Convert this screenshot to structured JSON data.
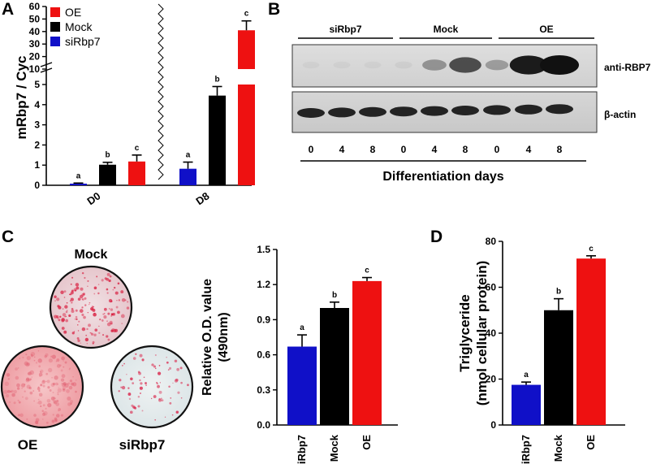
{
  "panels": [
    "A",
    "B",
    "C",
    "D"
  ],
  "colors": {
    "oe": "#ee1111",
    "mock": "#000000",
    "sirbp7": "#1010c8"
  },
  "chart_data": [
    {
      "id": "A",
      "type": "bar",
      "ylabel": "mRbp7 / Cyc",
      "axis_breaks": "broken y axis between 5 and 10",
      "yticks_low": [
        "0",
        "1",
        "2",
        "3",
        "4",
        "5"
      ],
      "yticks_high": [
        "10",
        "20",
        "30",
        "40",
        "50",
        "60"
      ],
      "groups": [
        "D0",
        "D8"
      ],
      "legend": [
        {
          "name": "OE",
          "color": "#ee1111"
        },
        {
          "name": "Mock",
          "color": "#000000"
        },
        {
          "name": "siRbp7",
          "color": "#1010c8"
        }
      ],
      "series": [
        {
          "name": "siRbp7",
          "values": [
            0.08,
            0.82
          ],
          "errors": [
            0.03,
            0.33
          ],
          "sig": [
            "a",
            "a"
          ]
        },
        {
          "name": "Mock",
          "values": [
            1.02,
            4.45
          ],
          "errors": [
            0.12,
            0.45
          ],
          "sig": [
            "b",
            "b"
          ]
        },
        {
          "name": "OE",
          "values": [
            1.18,
            41.0
          ],
          "errors": [
            0.32,
            7.5
          ],
          "sig": [
            "c",
            "c"
          ]
        }
      ]
    },
    {
      "id": "C",
      "type": "bar",
      "ylabel_line1": "Relative O.D. value",
      "ylabel_line2": "(490nm)",
      "ylim": [
        0,
        1.5
      ],
      "yticks": [
        "0.0",
        "0.3",
        "0.6",
        "0.9",
        "1.2",
        "1.5"
      ],
      "categories": [
        "siRbp7",
        "Mock",
        "OE"
      ],
      "values": [
        0.67,
        1.0,
        1.23
      ],
      "errors": [
        0.1,
        0.05,
        0.03
      ],
      "sig": [
        "a",
        "b",
        "c"
      ]
    },
    {
      "id": "D",
      "type": "bar",
      "ylabel_line1": "Triglyceride",
      "ylabel_line2": "(nmol cellular protein)",
      "ylim": [
        0,
        80
      ],
      "yticks": [
        "0",
        "20",
        "40",
        "60",
        "80"
      ],
      "categories": [
        "siRbp7",
        "Mock",
        "OE"
      ],
      "values": [
        17.5,
        50,
        72.5
      ],
      "errors": [
        1.2,
        5,
        1.2
      ],
      "sig": [
        "a",
        "b",
        "c"
      ]
    }
  ],
  "blot": {
    "groups": [
      "siRbp7",
      "Mock",
      "OE"
    ],
    "lanes": [
      "0",
      "4",
      "8",
      "0",
      "4",
      "8",
      "0",
      "4",
      "8"
    ],
    "rows": [
      "anti-RBP7",
      "β-actin"
    ],
    "rbp7_intensity": [
      0.02,
      0.03,
      0.03,
      0.05,
      0.35,
      0.7,
      0.3,
      0.95,
      1.0
    ],
    "xlabel": "Differentiation days"
  },
  "dishes": {
    "top": "Mock",
    "left": "OE",
    "right": "siRbp7"
  }
}
